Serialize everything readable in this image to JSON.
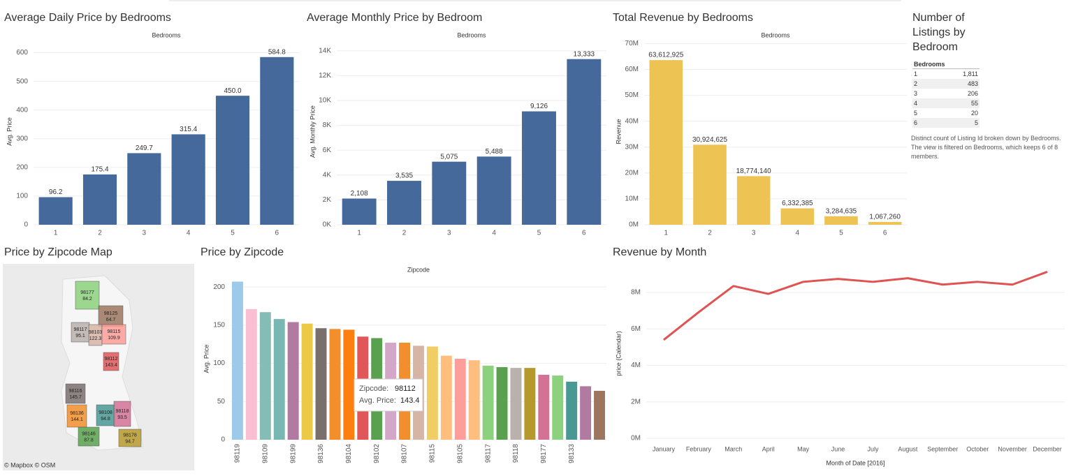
{
  "chart_data": [
    {
      "type": "bar",
      "title": "Average Daily Price by Bedrooms",
      "x_label": "Bedrooms",
      "y_label": "Avg. Price",
      "categories": [
        "1",
        "2",
        "3",
        "4",
        "5",
        "6"
      ],
      "values": [
        96.2,
        175.4,
        249.7,
        315.4,
        450.0,
        584.8
      ],
      "value_labels": [
        "96.2",
        "175.4",
        "249.7",
        "315.4",
        "450.0",
        "584.8"
      ],
      "color": "#44699a",
      "ylim": [
        0,
        650
      ],
      "yticks": [
        0,
        100,
        200,
        300,
        400,
        500,
        600
      ],
      "grid": true
    },
    {
      "type": "bar",
      "title": "Average Monthly Price by Bedroom",
      "x_label": "Bedrooms",
      "y_label": "Avg. Monthly Price",
      "categories": [
        "1",
        "2",
        "3",
        "4",
        "5",
        "6"
      ],
      "values": [
        2108,
        3535,
        5075,
        5488,
        9126,
        13333
      ],
      "value_labels": [
        "2,108",
        "3,535",
        "5,075",
        "5,488",
        "9,126",
        "13,333"
      ],
      "color": "#44699a",
      "ylim": [
        0,
        15000
      ],
      "yticks": [
        {
          "value": 0,
          "label": "0K"
        },
        {
          "value": 2000,
          "label": "2K"
        },
        {
          "value": 4000,
          "label": "4K"
        },
        {
          "value": 6000,
          "label": "6K"
        },
        {
          "value": 8000,
          "label": "8K"
        },
        {
          "value": 10000,
          "label": "10K"
        },
        {
          "value": 12000,
          "label": "12K"
        },
        {
          "value": 14000,
          "label": "14K"
        }
      ],
      "grid": true
    },
    {
      "type": "bar",
      "title": "Total Revenue by Bedrooms",
      "x_label": "Bedrooms",
      "y_label": "Revenue",
      "categories": [
        "1",
        "2",
        "3",
        "4",
        "5",
        "6"
      ],
      "values": [
        63612925,
        30924625,
        18774140,
        6332385,
        3284635,
        1067260
      ],
      "value_labels": [
        "63,612,925",
        "30,924,625",
        "18,774,140",
        "6,332,385",
        "3,284,635",
        "1,067,260"
      ],
      "color": "#edc453",
      "ylim": [
        0,
        72000000
      ],
      "yticks": [
        {
          "value": 0,
          "label": "0M"
        },
        {
          "value": 10000000,
          "label": "10M"
        },
        {
          "value": 20000000,
          "label": "20M"
        },
        {
          "value": 30000000,
          "label": "30M"
        },
        {
          "value": 40000000,
          "label": "40M"
        },
        {
          "value": 50000000,
          "label": "50M"
        },
        {
          "value": 60000000,
          "label": "60M"
        },
        {
          "value": 70000000,
          "label": "70M"
        }
      ],
      "grid": true
    },
    {
      "type": "table",
      "title": "Number of Listings by Bedroom",
      "header": "Bedrooms",
      "rows": [
        [
          "1",
          "1,811"
        ],
        [
          "2",
          "483"
        ],
        [
          "3",
          "206"
        ],
        [
          "4",
          "55"
        ],
        [
          "5",
          "20"
        ],
        [
          "6",
          "5"
        ]
      ],
      "note": "Distinct count of Listing Id broken down by Bedrooms. The view is filtered on Bedrooms, which keeps 6 of 8 members."
    },
    {
      "type": "map",
      "title": "Price by Zipcode Map",
      "attribution": "© Mapbox © OSM",
      "regions": [
        {
          "zipcode": "98177",
          "value": 84.2,
          "color": "#8cd17d"
        },
        {
          "zipcode": "98125",
          "value": 64.7,
          "color": "#9d7660"
        },
        {
          "zipcode": "98117",
          "value": 95.1,
          "color": "#bab0ac"
        },
        {
          "zipcode": "98103",
          "value": 122.3,
          "color": "#d7b5a6"
        },
        {
          "zipcode": "98115",
          "value": 109.9,
          "color": "#ff9d9a"
        },
        {
          "zipcode": "98112",
          "value": 143.4,
          "color": "#e15759"
        },
        {
          "zipcode": "98116",
          "value": 145.7,
          "color": "#79706e"
        },
        {
          "zipcode": "98136",
          "value": 144.1,
          "color": "#f28e2b"
        },
        {
          "zipcode": "98108",
          "value": 94.8,
          "color": "#499894"
        },
        {
          "zipcode": "98118",
          "value": 93.5,
          "color": "#d37295"
        },
        {
          "zipcode": "98146",
          "value": 87.8,
          "color": "#59a14f"
        },
        {
          "zipcode": "98178",
          "value": 94.7,
          "color": "#b6992d"
        }
      ]
    },
    {
      "type": "bar",
      "title": "Price by Zipcode",
      "x_label": "Zipcode",
      "y_label": "Avg. Price",
      "categories": [
        "98119",
        null,
        "98109",
        null,
        "98199",
        null,
        "98136",
        null,
        "98104",
        null,
        "98102",
        null,
        "98107",
        null,
        "98115",
        null,
        "98105",
        null,
        "98117",
        null,
        "98118",
        null,
        "98177",
        null,
        "98133",
        null,
        null
      ],
      "values": [
        207,
        171,
        167,
        158,
        154,
        152,
        146,
        145,
        144,
        135,
        133,
        127,
        127,
        123,
        122,
        110,
        106,
        104,
        97,
        95,
        94,
        94,
        85,
        84,
        76,
        70,
        64
      ],
      "colors": [
        "#9ecae9",
        "#fabfd2",
        "#86bcb6",
        "#79b7b2",
        "#b07aa1",
        "#edc948",
        "#79706e",
        "#f28e2b",
        "#ff7f0e",
        "#e15759",
        "#59a14f",
        "#d4a6c8",
        "#f28e2b",
        "#d7b5a6",
        "#f1ce63",
        "#ffbe7d",
        "#ff9d9a",
        "#ffbe7d",
        "#8cd17d",
        "#59a14f",
        "#bab0ac",
        "#b6992d",
        "#d37295",
        "#8cd17d",
        "#499894",
        "#b07aa1",
        "#9d7660"
      ],
      "ylim": [
        0,
        212
      ],
      "yticks": [
        0,
        50,
        100,
        150,
        200
      ],
      "grid": true,
      "tooltip": {
        "zipcode_label": "Zipcode:",
        "zipcode": "98112",
        "price_label": "Avg. Price:",
        "price": 143.4
      }
    },
    {
      "type": "line",
      "title": "Revenue by Month",
      "x_label": "Month of Date [2016]",
      "y_label": "price (Calendar)",
      "categories": [
        "January",
        "February",
        "March",
        "April",
        "May",
        "June",
        "July",
        "August",
        "September",
        "October",
        "November",
        "December"
      ],
      "values": [
        5400000,
        6910000,
        8350000,
        7920000,
        8580000,
        8740000,
        8580000,
        8780000,
        8430000,
        8580000,
        8430000,
        9130000
      ],
      "color": "#df5353",
      "ylim": [
        0,
        9300000
      ],
      "yticks": [
        {
          "value": 0,
          "label": "0M"
        },
        {
          "value": 2000000,
          "label": "2M"
        },
        {
          "value": 4000000,
          "label": "4M"
        },
        {
          "value": 6000000,
          "label": "6M"
        },
        {
          "value": 8000000,
          "label": "8M"
        }
      ],
      "grid": true
    }
  ]
}
